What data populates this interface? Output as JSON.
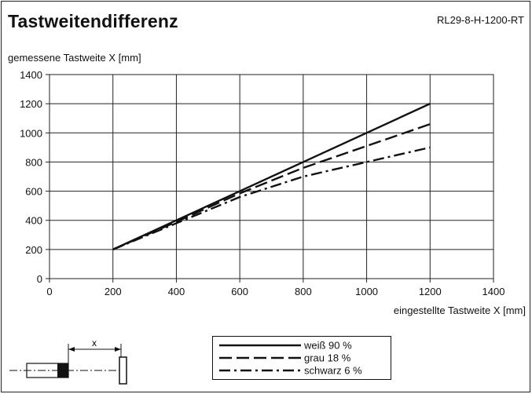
{
  "header": {
    "title": "Tastweitendifferenz",
    "model": "RL29-8-H-1200-RT"
  },
  "chart_data": {
    "type": "line",
    "xlabel": "eingestellte Tastweite X [mm]",
    "ylabel": "gemessene Tastweite X [mm]",
    "xlim": [
      0,
      1400
    ],
    "ylim": [
      0,
      1400
    ],
    "xticks": [
      0,
      200,
      400,
      600,
      800,
      1000,
      1200,
      1400
    ],
    "yticks": [
      0,
      200,
      400,
      600,
      800,
      1000,
      1200,
      1400
    ],
    "grid": true,
    "legend_position": "bottom-center",
    "series": [
      {
        "name": "weiß 90 %",
        "style": "solid",
        "x": [
          200,
          400,
          600,
          800,
          1000,
          1200
        ],
        "y": [
          200,
          400,
          600,
          800,
          1000,
          1200
        ]
      },
      {
        "name": "grau 18 %",
        "style": "dashed",
        "x": [
          200,
          400,
          600,
          800,
          1000,
          1200
        ],
        "y": [
          200,
          390,
          585,
          760,
          910,
          1060
        ]
      },
      {
        "name": "schwarz 6 %",
        "style": "dashdot",
        "x": [
          200,
          400,
          600,
          800,
          1000,
          1200
        ],
        "y": [
          200,
          380,
          560,
          700,
          800,
          900
        ]
      }
    ]
  },
  "diagram": {
    "distance_label": "x"
  },
  "colors": {
    "line": "#111111",
    "grid": "#222222"
  }
}
